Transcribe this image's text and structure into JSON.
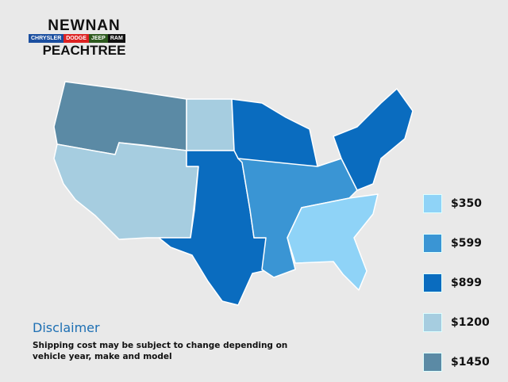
{
  "logo": {
    "line1": "NEWNAN",
    "brands": [
      {
        "name": "CHRYSLER",
        "color": "#1b4fa0"
      },
      {
        "name": "DODGE",
        "color": "#d22"
      },
      {
        "name": "JEEP",
        "color": "#2d5a1e"
      },
      {
        "name": "RAM",
        "color": "#111"
      }
    ],
    "line3": "PEACHTREE"
  },
  "legend": [
    {
      "label": "$350",
      "color": "#8fd3f7"
    },
    {
      "label": "$599",
      "color": "#3a95d4"
    },
    {
      "label": "$899",
      "color": "#0a6cbf"
    },
    {
      "label": "$1200",
      "color": "#a6cde0"
    },
    {
      "label": "$1450",
      "color": "#5b8aa5"
    }
  ],
  "regions": [
    {
      "name": "northwest",
      "price": "$1450"
    },
    {
      "name": "dakotas",
      "price": "$1200"
    },
    {
      "name": "west",
      "price": "$1200"
    },
    {
      "name": "plains-texas",
      "price": "$899"
    },
    {
      "name": "upper-midwest",
      "price": "$899"
    },
    {
      "name": "midwest-south",
      "price": "$599"
    },
    {
      "name": "northeast",
      "price": "$899"
    },
    {
      "name": "southeast",
      "price": "$350"
    }
  ],
  "disclaimer": {
    "title": "Disclaimer",
    "text": "Shipping cost may be subject to change depending on vehicle year, make and model"
  }
}
